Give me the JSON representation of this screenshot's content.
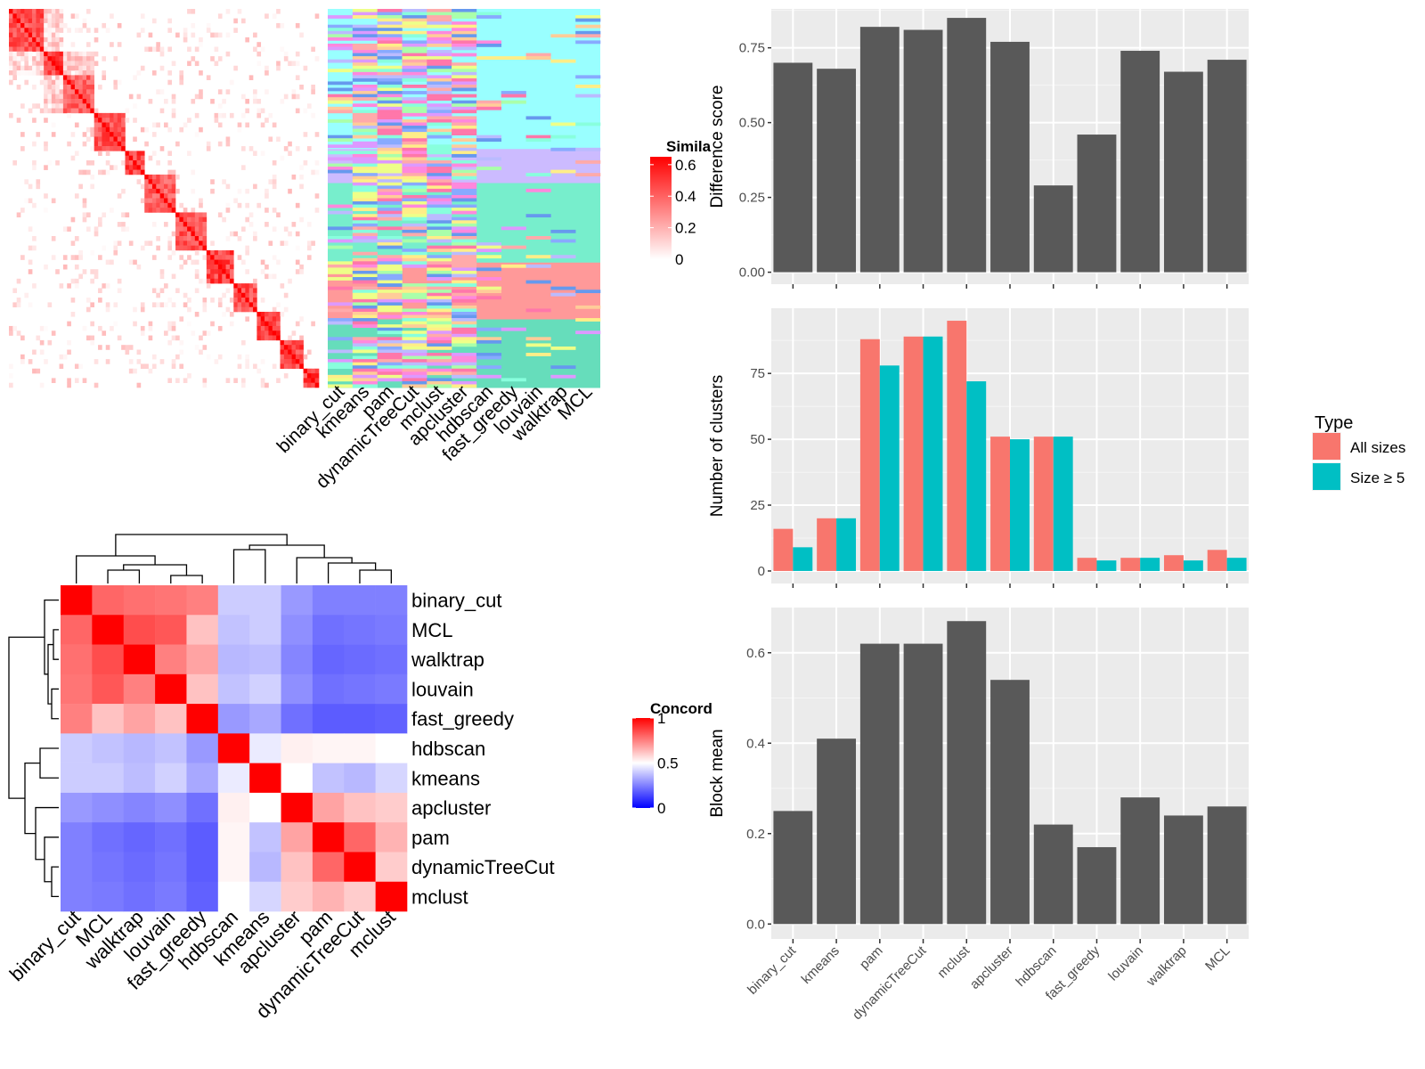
{
  "chart_data": [
    {
      "type": "heatmap",
      "id": "similarity",
      "legend_title": "Simila",
      "legend_ticks": [
        "0.6",
        "0.4",
        "0.2",
        "0"
      ],
      "legend_values": [
        0.6,
        0.4,
        0.2,
        0
      ],
      "legend_range": [
        0,
        0.65
      ],
      "colors": [
        "#ffffff",
        "#ff0000"
      ],
      "blocks": [
        {
          "from": 0,
          "to": 0.11,
          "value": 0.55
        },
        {
          "from": 0.11,
          "to": 0.17,
          "value": 0.62
        },
        {
          "from": 0.17,
          "to": 0.28,
          "value": 0.5
        },
        {
          "from": 0.28,
          "to": 0.38,
          "value": 0.55
        },
        {
          "from": 0.38,
          "to": 0.44,
          "value": 0.6
        },
        {
          "from": 0.44,
          "to": 0.54,
          "value": 0.5
        },
        {
          "from": 0.54,
          "to": 0.64,
          "value": 0.55
        },
        {
          "from": 0.64,
          "to": 0.72,
          "value": 0.6
        },
        {
          "from": 0.72,
          "to": 0.8,
          "value": 0.55
        },
        {
          "from": 0.8,
          "to": 0.88,
          "value": 0.6
        },
        {
          "from": 0.88,
          "to": 0.95,
          "value": 0.6
        },
        {
          "from": 0.95,
          "to": 1.0,
          "value": 0.6
        }
      ]
    },
    {
      "type": "heatmap",
      "id": "cluster-membership",
      "columns": [
        "binary_cut",
        "kmeans",
        "pam",
        "dynamicTreeCut",
        "mclust",
        "apcluster",
        "hdbscan",
        "fast_greedy",
        "louvain",
        "walktrap",
        "MCL"
      ],
      "row_groups": [
        {
          "from": 0,
          "to": 0.37,
          "color": "#99ffff"
        },
        {
          "from": 0.37,
          "to": 0.46,
          "color": "#ccbbff"
        },
        {
          "from": 0.46,
          "to": 0.67,
          "color": "#77eecc"
        },
        {
          "from": 0.67,
          "to": 0.82,
          "color": "#ff9999"
        },
        {
          "from": 0.82,
          "to": 1.0,
          "color": "#66ddbb"
        }
      ],
      "palette": [
        "#ff88dd",
        "#aaffaa",
        "#ffee88",
        "#88aaff",
        "#ffaaaa",
        "#dd99ff",
        "#88ffdd",
        "#ffcc99",
        "#6699ee",
        "#eeff88",
        "#bbbbff",
        "#ff77aa"
      ]
    },
    {
      "type": "heatmap",
      "id": "concordance",
      "legend_title": "Concord",
      "legend_ticks": [
        "1",
        "0.5",
        "0"
      ],
      "legend_values": [
        1,
        0.5,
        0
      ],
      "colors": [
        "#0000ff",
        "#ffffff",
        "#ff0000"
      ],
      "rows": [
        "binary_cut",
        "MCL",
        "walktrap",
        "louvain",
        "fast_greedy",
        "hdbscan",
        "kmeans",
        "apcluster",
        "pam",
        "dynamicTreeCut",
        "mclust"
      ],
      "columns": [
        "binary_cut",
        "MCL",
        "walktrap",
        "louvain",
        "fast_greedy",
        "hdbscan",
        "kmeans",
        "apcluster",
        "pam",
        "dynamicTreeCut",
        "mclust"
      ],
      "values": [
        [
          1,
          0.8,
          0.78,
          0.77,
          0.75,
          0.4,
          0.4,
          0.3,
          0.25,
          0.25,
          0.25
        ],
        [
          0.8,
          1,
          0.85,
          0.83,
          0.62,
          0.38,
          0.4,
          0.28,
          0.22,
          0.23,
          0.24
        ],
        [
          0.78,
          0.85,
          1,
          0.75,
          0.68,
          0.36,
          0.37,
          0.26,
          0.2,
          0.21,
          0.22
        ],
        [
          0.77,
          0.83,
          0.75,
          1,
          0.62,
          0.38,
          0.41,
          0.28,
          0.22,
          0.23,
          0.24
        ],
        [
          0.75,
          0.62,
          0.68,
          0.62,
          1,
          0.3,
          0.33,
          0.22,
          0.18,
          0.18,
          0.19
        ],
        [
          0.4,
          0.38,
          0.36,
          0.38,
          0.3,
          1,
          0.46,
          0.53,
          0.52,
          0.52,
          0.5
        ],
        [
          0.4,
          0.4,
          0.37,
          0.41,
          0.33,
          0.46,
          1,
          0.5,
          0.38,
          0.36,
          0.42
        ],
        [
          0.3,
          0.28,
          0.26,
          0.28,
          0.22,
          0.53,
          0.5,
          1,
          0.68,
          0.62,
          0.6
        ],
        [
          0.25,
          0.22,
          0.2,
          0.22,
          0.18,
          0.52,
          0.38,
          0.68,
          1,
          0.8,
          0.65
        ],
        [
          0.25,
          0.23,
          0.21,
          0.23,
          0.18,
          0.52,
          0.36,
          0.62,
          0.8,
          1,
          0.6
        ],
        [
          0.25,
          0.24,
          0.22,
          0.24,
          0.19,
          0.5,
          0.42,
          0.6,
          0.65,
          0.6,
          1
        ]
      ]
    },
    {
      "type": "bar",
      "id": "difference-score",
      "categories": [
        "binary_cut",
        "kmeans",
        "pam",
        "dynamicTreeCut",
        "mclust",
        "apcluster",
        "hdbscan",
        "fast_greedy",
        "louvain",
        "walktrap",
        "MCL"
      ],
      "values": [
        0.7,
        0.68,
        0.82,
        0.81,
        0.85,
        0.77,
        0.29,
        0.46,
        0.74,
        0.67,
        0.71
      ],
      "ylabel": "Difference score",
      "yticks": [
        0.0,
        0.25,
        0.5,
        0.75
      ],
      "ytick_labels": [
        "0.00",
        "0.25",
        "0.50",
        "0.75"
      ],
      "ylim": [
        -0.04,
        0.88
      ],
      "grid": true,
      "bar_color": "#595959"
    },
    {
      "type": "bar",
      "id": "number-of-clusters",
      "categories": [
        "binary_cut",
        "kmeans",
        "pam",
        "dynamicTreeCut",
        "mclust",
        "apcluster",
        "hdbscan",
        "fast_greedy",
        "louvain",
        "walktrap",
        "MCL"
      ],
      "series": [
        {
          "name": "All sizes",
          "color": "#f8766d",
          "values": [
            16,
            20,
            88,
            89,
            95,
            51,
            51,
            5,
            5,
            6,
            8
          ]
        },
        {
          "name": "Size ≥ 5",
          "color": "#00bfc4",
          "values": [
            9,
            20,
            78,
            89,
            72,
            50,
            51,
            4,
            5,
            4,
            5
          ]
        }
      ],
      "ylabel": "Number of clusters",
      "yticks": [
        0,
        25,
        50,
        75
      ],
      "ytick_labels": [
        "0",
        "25",
        "50",
        "75"
      ],
      "ylim": [
        -4.75,
        99.75
      ],
      "legend_title": "Type",
      "legend_position": "right",
      "grid": true
    },
    {
      "type": "bar",
      "id": "block-mean",
      "categories": [
        "binary_cut",
        "kmeans",
        "pam",
        "dynamicTreeCut",
        "mclust",
        "apcluster",
        "hdbscan",
        "fast_greedy",
        "louvain",
        "walktrap",
        "MCL"
      ],
      "values": [
        0.25,
        0.41,
        0.62,
        0.62,
        0.67,
        0.54,
        0.22,
        0.17,
        0.28,
        0.24,
        0.26
      ],
      "ylabel": "Block mean",
      "yticks": [
        0.0,
        0.2,
        0.4,
        0.6
      ],
      "ytick_labels": [
        "0.0",
        "0.2",
        "0.4",
        "0.6"
      ],
      "ylim": [
        -0.033,
        0.7
      ],
      "grid": true,
      "bar_color": "#595959"
    }
  ]
}
